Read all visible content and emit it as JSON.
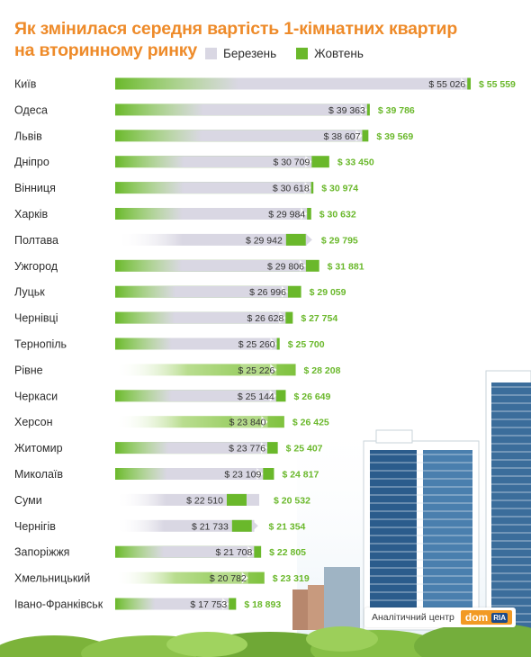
{
  "chart_data": {
    "type": "bar",
    "title_line1": "Як змінилася середня вартість 1-кімнатних квартир",
    "title_line2": "на вторинному ринку",
    "legend": [
      {
        "name": "Березень",
        "color": "#d9d7e3"
      },
      {
        "name": "Жовтень",
        "color": "#6ab82b"
      }
    ],
    "value_prefix": "$",
    "categories": [
      "Київ",
      "Одеса",
      "Львів",
      "Дніпро",
      "Вінниця",
      "Харків",
      "Полтава",
      "Ужгород",
      "Луцьк",
      "Чернівці",
      "Тернопіль",
      "Рівне",
      "Черкаси",
      "Херсон",
      "Житомир",
      "Миколаїв",
      "Суми",
      "Чернігів",
      "Запоріжжя",
      "Хмельницький",
      "Івано-Франківськ"
    ],
    "series": [
      {
        "name": "Березень",
        "values": [
          55026,
          39363,
          38607,
          30709,
          30618,
          29984,
          29942,
          29806,
          26996,
          26628,
          25260,
          25226,
          25144,
          23840,
          23776,
          23109,
          22510,
          21733,
          21708,
          20782,
          17753
        ]
      },
      {
        "name": "Жовтень",
        "values": [
          55559,
          39786,
          39569,
          33450,
          30974,
          30632,
          29795,
          31881,
          29059,
          27754,
          25700,
          28208,
          26649,
          26425,
          25407,
          24817,
          20532,
          21354,
          22805,
          23319,
          18893
        ]
      }
    ],
    "march_labels": [
      "$ 55 026",
      "$ 39 363",
      "$ 38 607",
      "$ 30 709",
      "$ 30 618",
      "$ 29 984",
      "$ 29 942",
      "$ 29 806",
      "$ 26 996",
      "$ 26 628",
      "$ 25 260",
      "$ 25 226",
      "$ 25 144",
      "$ 23 840",
      "$ 23 776",
      "$ 23 109",
      "$ 22 510",
      "$ 21 733",
      "$ 21 708",
      "$ 20 782",
      "$ 17 753"
    ],
    "october_labels": [
      "$ 55 559",
      "$ 39 786",
      "$ 39 569",
      "$ 33 450",
      "$ 30 974",
      "$ 30 632",
      "$ 29 795",
      "$ 31 881",
      "$ 29 059",
      "$ 27 754",
      "$ 25 700",
      "$ 28 208",
      "$ 26 649",
      "$ 26 425",
      "$ 25 407",
      "$ 24 817",
      "$ 20 532",
      "$ 21 354",
      "$ 22 805",
      "$ 23 319",
      "$ 18 893"
    ]
  },
  "footer": {
    "caption": "Аналітичний центр",
    "brand": "dom",
    "brand_sub": "RIA"
  },
  "colors": {
    "title": "#ee8b2a",
    "march": "#d9d7e3",
    "october": "#6ab82b",
    "october_label": "#6ab82b"
  }
}
